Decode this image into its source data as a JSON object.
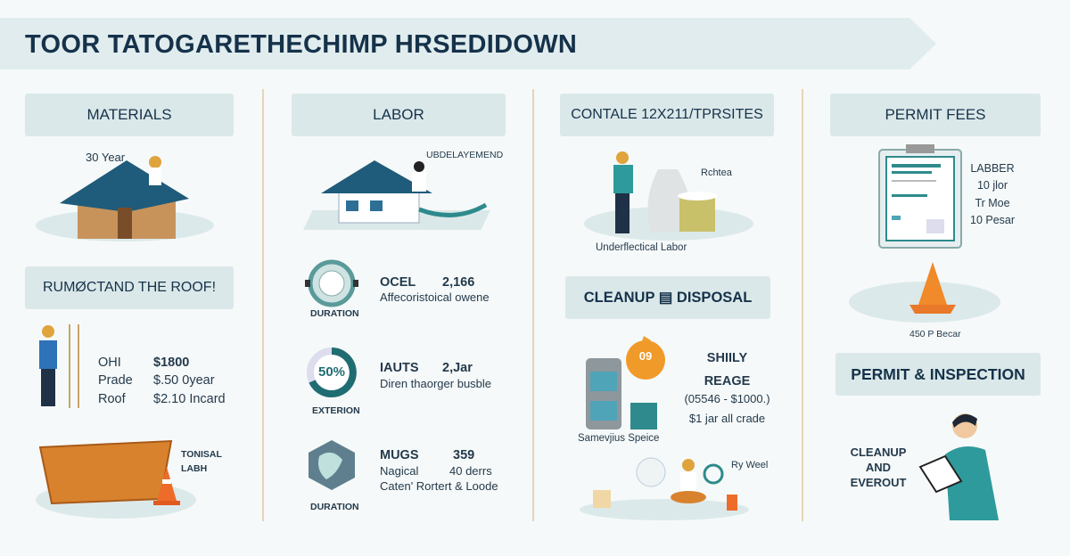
{
  "title": "TOOR TATOGARETHECHIMP HRSEDIDOWN",
  "colors": {
    "navy": "#15324a",
    "teal": "#2e8a8c",
    "orange": "#e8892e",
    "panel": "#dbe8e9",
    "divider": "#e8d3b9"
  },
  "col1": {
    "header": "MATERIALS",
    "roof_label": "30 Year",
    "section2": "RUMØCTAND THE ROOF!",
    "rows": [
      {
        "label": "OHI",
        "value": "$1800"
      },
      {
        "label": "Prade",
        "value": "$.50 0year"
      },
      {
        "label": "Roof",
        "value": "$2.10 Incard"
      }
    ],
    "dumpster_label": [
      "TONISAL",
      "LABH"
    ]
  },
  "col2": {
    "header": "LABOR",
    "house_label": "UBDELAYEMEND",
    "items": [
      {
        "icon_label": "DURATION",
        "name": "OCEL",
        "value": "2,166",
        "desc": "Affecoristoical owene"
      },
      {
        "icon_label": "EXTERION",
        "gauge_text": "50%",
        "name": "IAUTS",
        "value": "2,Jar",
        "desc": "Diren thaorger busble"
      },
      {
        "icon_label": "DURATION",
        "name": "MUGS",
        "value": "359",
        "desc": "Nagical",
        "desc2": "40 derrs",
        "desc3": "Caten' Rortert & Loode"
      }
    ]
  },
  "col3": {
    "header": "CONTALE 12X211/TPRSITES",
    "bag_label": "Rchtea",
    "caption": "Underflectical Labor",
    "section2": "CLEANUP ▤ DISPOSAL",
    "sun_text": "09",
    "lines": [
      "SHIILY",
      "REAGE",
      "(05546 - $1000.)",
      "$1 jar all crade"
    ],
    "caption2": "Samevjius Speice",
    "worker_label": "Ry Weel"
  },
  "col4": {
    "header": "PERMIT FEES",
    "doc_lines": [
      "LABBER",
      "10 jlor",
      "Tr Moe",
      "10 Pesar"
    ],
    "cone_label": "450 P Becar",
    "section2": "PERMIT & INSPECTION",
    "person_label": [
      "CLEANUP",
      "AND",
      "EVEROUT"
    ]
  }
}
